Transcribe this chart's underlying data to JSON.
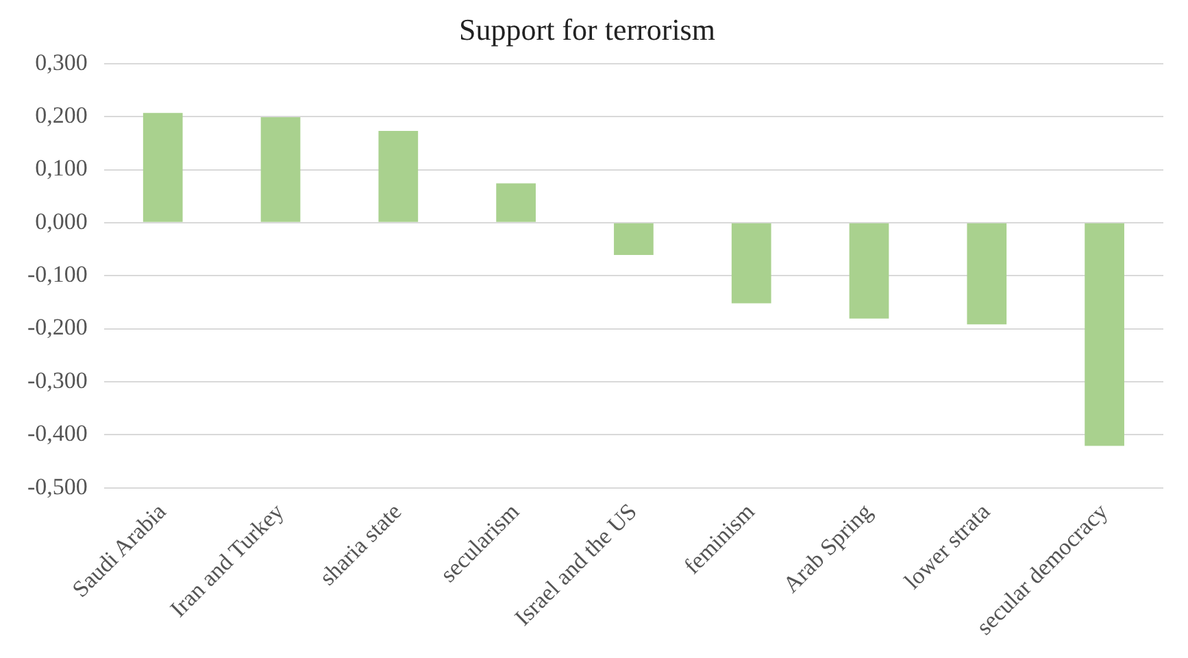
{
  "chart_data": {
    "type": "bar",
    "title": "Support for terrorism",
    "categories": [
      "Saudi Arabia",
      "Iran and Turkey",
      "sharia state",
      "secularism",
      "Israel and the US",
      "feminism",
      "Arab Spring",
      "lower strata",
      "secular democracy"
    ],
    "values": [
      0.207,
      0.199,
      0.173,
      0.074,
      -0.061,
      -0.152,
      -0.181,
      -0.192,
      -0.421
    ],
    "color": "#a9d18e",
    "ylim": [
      -0.5,
      0.3
    ],
    "yticks": [
      {
        "value": -0.5,
        "label": "-0,500"
      },
      {
        "value": -0.4,
        "label": "-0,400"
      },
      {
        "value": -0.3,
        "label": "-0,300"
      },
      {
        "value": -0.2,
        "label": "-0,200"
      },
      {
        "value": -0.1,
        "label": "-0,100"
      },
      {
        "value": 0,
        "label": "0,000"
      },
      {
        "value": 0.1,
        "label": "0,100"
      },
      {
        "value": 0.2,
        "label": "0,200"
      },
      {
        "value": 0.3,
        "label": "0,300"
      }
    ],
    "grid": "y",
    "legend": false
  }
}
